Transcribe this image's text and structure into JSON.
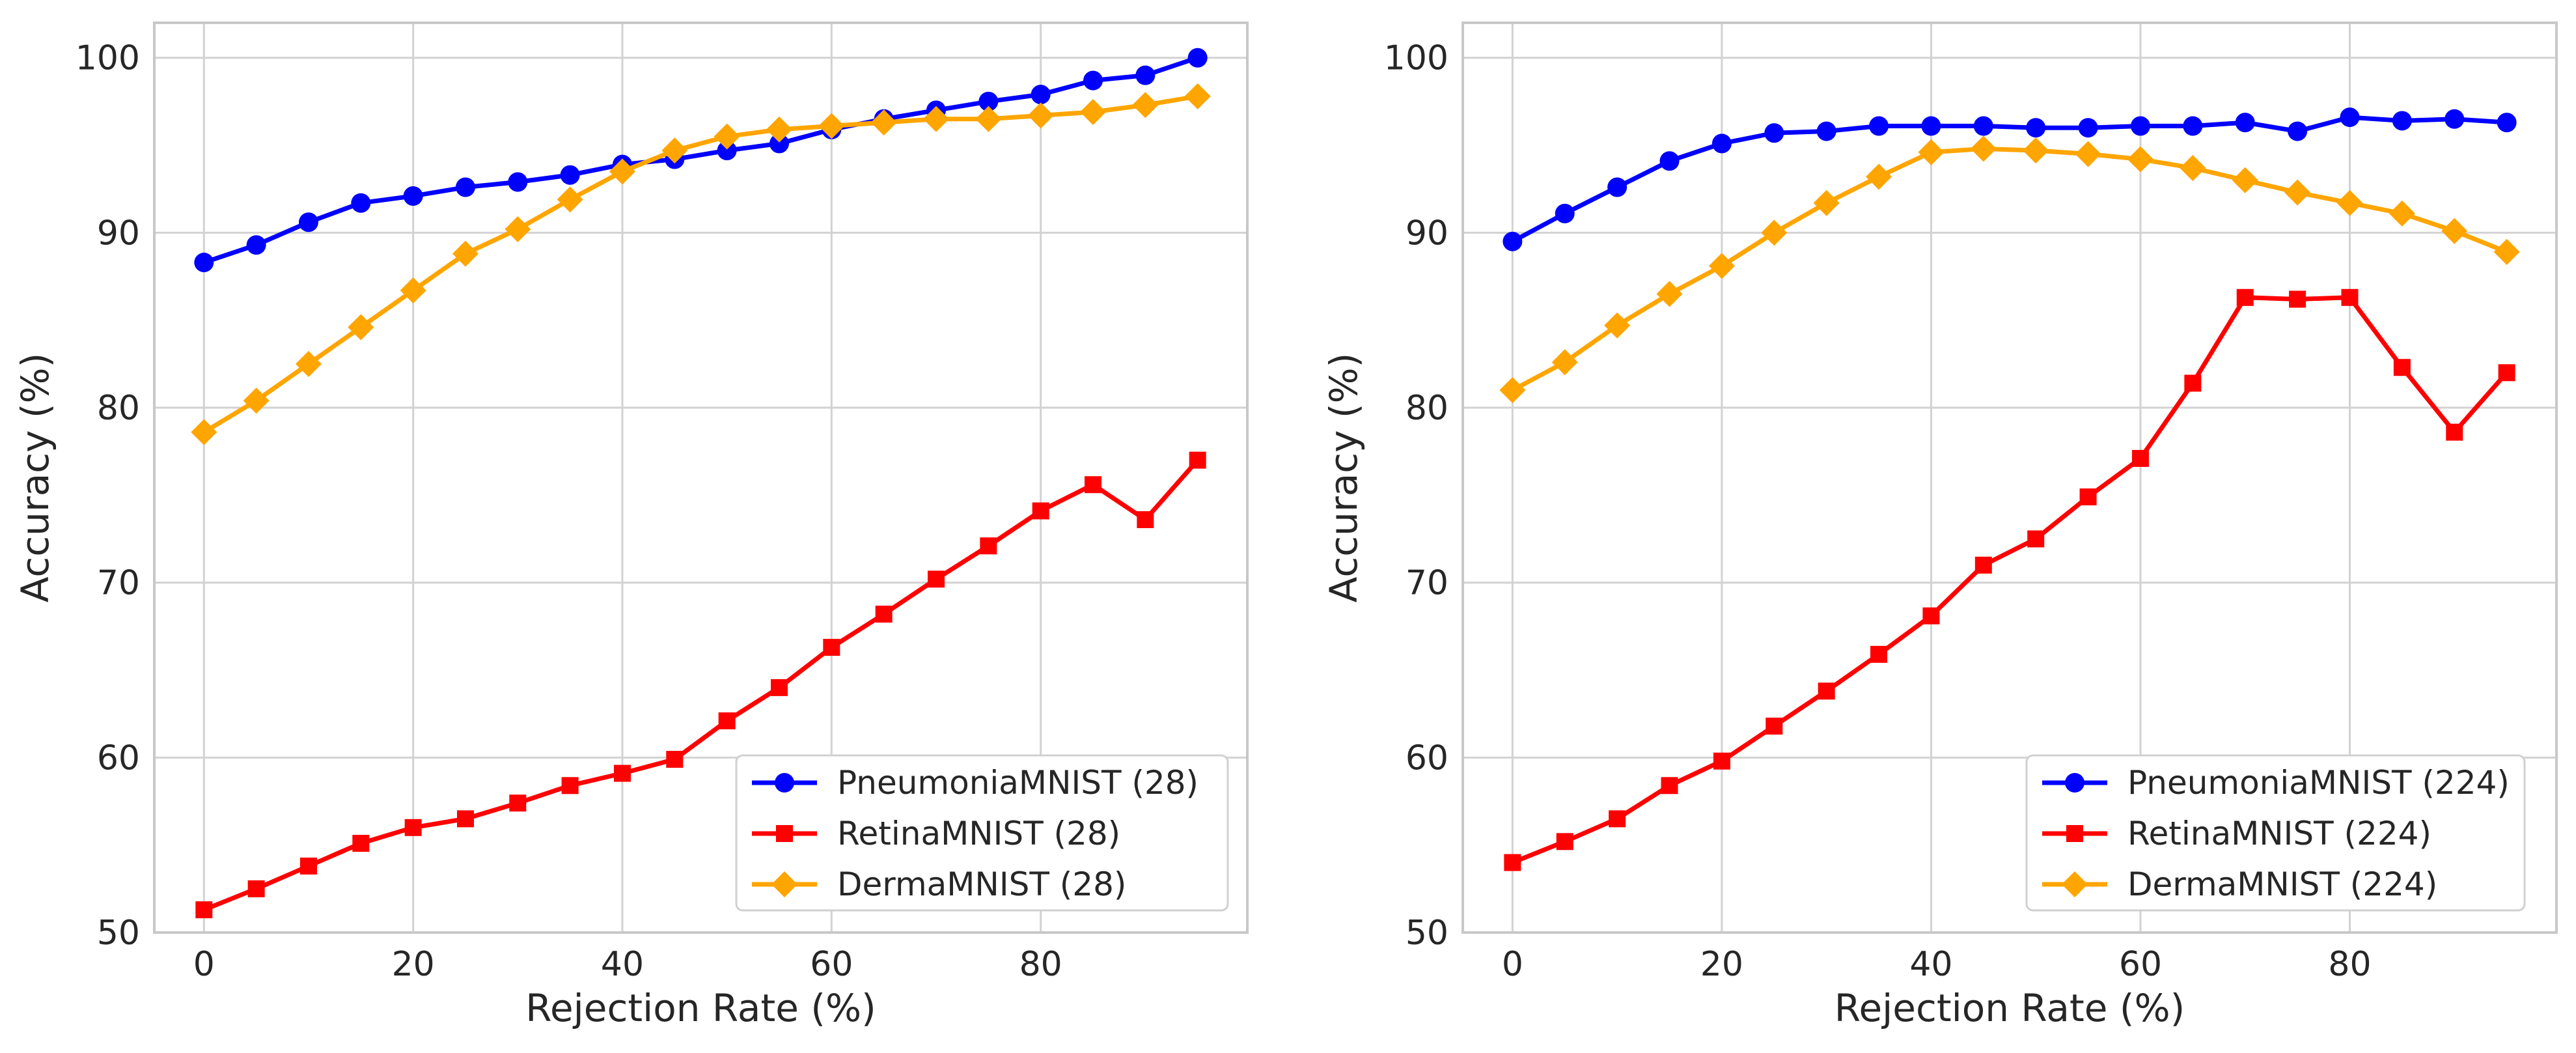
{
  "chart_data": [
    {
      "type": "line",
      "title": "",
      "xlabel": "Rejection Rate (%)",
      "ylabel": "Accuracy (%)",
      "xlim": [
        -4.75,
        99.75
      ],
      "ylim": [
        50,
        102
      ],
      "xticks": [
        0,
        20,
        40,
        60,
        80
      ],
      "yticks": [
        50,
        60,
        70,
        80,
        90,
        100
      ],
      "grid": true,
      "legend_position": "lower-right",
      "x": [
        0,
        5,
        10,
        15,
        20,
        25,
        30,
        35,
        40,
        45,
        50,
        55,
        60,
        65,
        70,
        75,
        80,
        85,
        90,
        95
      ],
      "series": [
        {
          "name": "PneumoniaMNIST (28)",
          "color": "#0000ff",
          "marker": "circle",
          "values": [
            88.3,
            89.3,
            90.6,
            91.7,
            92.1,
            92.6,
            92.9,
            93.3,
            93.9,
            94.2,
            94.7,
            95.1,
            95.9,
            96.5,
            97.0,
            97.5,
            97.9,
            98.7,
            99.0,
            100.0
          ]
        },
        {
          "name": "RetinaMNIST (28)",
          "color": "#ff0000",
          "marker": "square",
          "values": [
            51.3,
            52.5,
            53.8,
            55.1,
            56.0,
            56.5,
            57.4,
            58.4,
            59.1,
            59.9,
            62.1,
            64.0,
            66.3,
            68.2,
            70.2,
            72.1,
            74.1,
            75.6,
            73.6,
            77.0
          ]
        },
        {
          "name": "DermaMNIST (28)",
          "color": "#ffa500",
          "marker": "diamond",
          "values": [
            78.6,
            80.4,
            82.5,
            84.6,
            86.7,
            88.8,
            90.2,
            91.9,
            93.5,
            94.7,
            95.5,
            95.9,
            96.1,
            96.3,
            96.5,
            96.5,
            96.7,
            96.9,
            97.3,
            97.8
          ]
        }
      ]
    },
    {
      "type": "line",
      "title": "",
      "xlabel": "Rejection Rate (%)",
      "ylabel": "Accuracy (%)",
      "xlim": [
        -4.75,
        99.75
      ],
      "ylim": [
        50,
        102
      ],
      "xticks": [
        0,
        20,
        40,
        60,
        80
      ],
      "yticks": [
        50,
        60,
        70,
        80,
        90,
        100
      ],
      "grid": true,
      "legend_position": "lower-right",
      "x": [
        0,
        5,
        10,
        15,
        20,
        25,
        30,
        35,
        40,
        45,
        50,
        55,
        60,
        65,
        70,
        75,
        80,
        85,
        90,
        95
      ],
      "series": [
        {
          "name": "PneumoniaMNIST (224)",
          "color": "#0000ff",
          "marker": "circle",
          "values": [
            89.5,
            91.1,
            92.6,
            94.1,
            95.1,
            95.7,
            95.8,
            96.1,
            96.1,
            96.1,
            96.0,
            96.0,
            96.1,
            96.1,
            96.3,
            95.8,
            96.6,
            96.4,
            96.5,
            96.3
          ]
        },
        {
          "name": "RetinaMNIST (224)",
          "color": "#ff0000",
          "marker": "square",
          "values": [
            54.0,
            55.2,
            56.5,
            58.4,
            59.8,
            61.8,
            63.8,
            65.9,
            68.1,
            71.0,
            72.5,
            74.9,
            77.1,
            81.4,
            86.3,
            86.2,
            86.3,
            82.3,
            78.6,
            82.0
          ]
        },
        {
          "name": "DermaMNIST (224)",
          "color": "#ffa500",
          "marker": "diamond",
          "values": [
            81.0,
            82.6,
            84.7,
            86.5,
            88.1,
            90.0,
            91.7,
            93.2,
            94.6,
            94.8,
            94.7,
            94.5,
            94.2,
            93.7,
            93.0,
            92.3,
            91.7,
            91.1,
            90.1,
            88.9
          ]
        }
      ]
    }
  ]
}
